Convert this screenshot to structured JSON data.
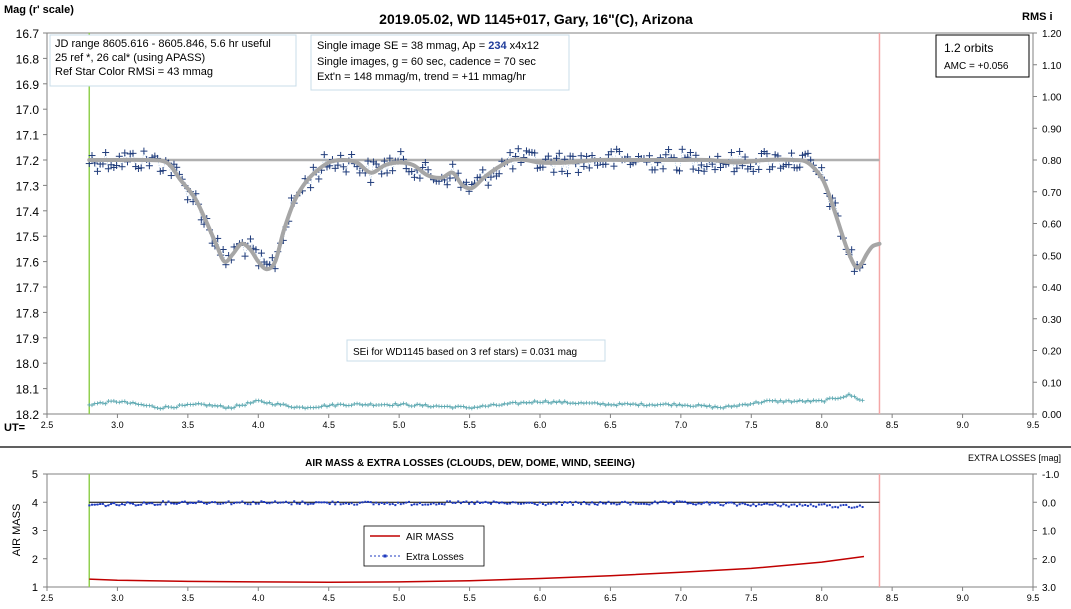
{
  "top_chart": {
    "title": "2019.05.02, WD 1145+017, Gary, 16\"(C), Arizona",
    "y_left_label": "Mag (r' scale)",
    "y_right_label": "RMS i",
    "x_label": "UT=",
    "info_box_1": [
      "JD range 8605.616 - 8605.846, 5.6 hr useful",
      "25 ref *, 26 cal* (using APASS)",
      "Ref Star Color RMSi = 43 mmag"
    ],
    "info_box_2": {
      "line1_pre": "Single image SE = 38 mmag, Ap = ",
      "line1_ap": "234",
      "line1_post": " x4x12",
      "line2": "Single images, g = 60 sec, cadence = 70 sec",
      "line3": "Ext'n = 148 mmag/m, trend = +11 mmag/hr"
    },
    "orbits_box": [
      "1.2 orbits",
      "AMC = +0.056"
    ],
    "sei_note": "SEi for WD1145 based on 3 ref stars) = 0.031 mag",
    "colors": {
      "data": "#1f3b7a",
      "model": "#a6a6a6",
      "rms": "#5aa7b0",
      "green_line": "#92d050",
      "red_line": "#f4a6a6"
    }
  },
  "bottom_chart": {
    "title": "AIR MASS & EXTRA LOSSES (CLOUDS, DEW, DOME, WIND, SEEING)",
    "y_left_label": "AIR MASS",
    "y_right_label": "EXTRA LOSSES [mag]",
    "legend": [
      "AIR MASS",
      "Extra Losses"
    ],
    "colors": {
      "airmass": "#c00000",
      "losses": "#1f3bbf"
    }
  },
  "chart_data": [
    {
      "type": "scatter",
      "title": "2019.05.02, WD 1145+017, Gary, 16\"(C), Arizona",
      "xlabel": "UT=",
      "ylabel": "Mag (r' scale)",
      "y2label": "RMS i",
      "xlim": [
        2.5,
        9.5
      ],
      "ylim": [
        18.2,
        16.7
      ],
      "y2lim": [
        0.0,
        1.2
      ],
      "x_ticks": [
        "2.5",
        "3.0",
        "3.5",
        "4.0",
        "4.5",
        "5.0",
        "5.5",
        "6.0",
        "6.5",
        "7.0",
        "7.5",
        "8.0",
        "8.5",
        "9.0",
        "9.5"
      ],
      "y_ticks": [
        "16.7",
        "16.8",
        "16.9",
        "17.0",
        "17.1",
        "17.2",
        "17.3",
        "17.4",
        "17.5",
        "17.6",
        "17.7",
        "17.8",
        "17.9",
        "18.0",
        "18.1",
        "18.2"
      ],
      "y2_ticks": [
        "1.20",
        "1.10",
        "1.00",
        "0.90",
        "0.80",
        "0.70",
        "0.60",
        "0.50",
        "0.40",
        "0.30",
        "0.20",
        "0.10",
        "0.00"
      ],
      "vertical_lines": [
        {
          "x": 2.8,
          "color": "green"
        },
        {
          "x": 8.41,
          "color": "red"
        }
      ],
      "reference_line": 17.2,
      "model_curve": {
        "x": [
          2.8,
          3.0,
          3.2,
          3.35,
          3.45,
          3.55,
          3.62,
          3.7,
          3.76,
          3.82,
          3.88,
          3.94,
          4.0,
          4.06,
          4.12,
          4.18,
          4.25,
          4.32,
          4.4,
          4.5,
          4.6,
          4.7,
          4.8,
          4.9,
          5.0,
          5.1,
          5.2,
          5.3,
          5.38,
          5.45,
          5.52,
          5.6,
          5.7,
          5.8,
          5.9,
          6.0,
          6.2,
          6.4,
          6.6,
          6.8,
          7.0,
          7.2,
          7.4,
          7.6,
          7.8,
          7.9,
          8.0,
          8.06,
          8.12,
          8.18,
          8.24,
          8.28,
          8.32,
          8.36,
          8.41
        ],
        "y": [
          17.2,
          17.2,
          17.2,
          17.21,
          17.28,
          17.35,
          17.43,
          17.53,
          17.6,
          17.57,
          17.53,
          17.55,
          17.6,
          17.63,
          17.6,
          17.48,
          17.37,
          17.3,
          17.25,
          17.21,
          17.2,
          17.21,
          17.25,
          17.22,
          17.21,
          17.22,
          17.26,
          17.27,
          17.25,
          17.3,
          17.31,
          17.27,
          17.23,
          17.2,
          17.2,
          17.21,
          17.21,
          17.2,
          17.2,
          17.2,
          17.2,
          17.2,
          17.21,
          17.2,
          17.2,
          17.21,
          17.27,
          17.35,
          17.45,
          17.55,
          17.62,
          17.61,
          17.57,
          17.54,
          17.53
        ]
      },
      "rms_approx": {
        "x": [
          2.8,
          3.0,
          3.3,
          3.6,
          3.8,
          4.0,
          4.3,
          4.6,
          5.0,
          5.5,
          6.0,
          6.5,
          7.0,
          7.3,
          7.6,
          8.0,
          8.2,
          8.3
        ],
        "y": [
          0.03,
          0.04,
          0.02,
          0.03,
          0.02,
          0.04,
          0.02,
          0.03,
          0.03,
          0.02,
          0.04,
          0.03,
          0.03,
          0.02,
          0.04,
          0.04,
          0.06,
          0.04
        ]
      }
    },
    {
      "type": "line",
      "title": "AIR MASS & EXTRA LOSSES (CLOUDS, DEW, DOME, WIND, SEEING)",
      "ylabel": "AIR MASS",
      "y2label": "EXTRA LOSSES [mag]",
      "xlim": [
        2.5,
        9.5
      ],
      "ylim": [
        1,
        5
      ],
      "y2lim": [
        3.0,
        -1.0
      ],
      "x_ticks": [
        "2.5",
        "3.0",
        "3.5",
        "4.0",
        "4.5",
        "5.0",
        "5.5",
        "6.0",
        "6.5",
        "7.0",
        "7.5",
        "8.0",
        "8.5",
        "9.0",
        "9.5"
      ],
      "y_ticks": [
        "5",
        "4",
        "3",
        "2",
        "1"
      ],
      "y2_ticks": [
        "-1.0",
        "0.0",
        "1.0",
        "2.0",
        "3.0"
      ],
      "vertical_lines": [
        {
          "x": 2.8,
          "color": "green"
        },
        {
          "x": 8.41,
          "color": "red"
        }
      ],
      "series": [
        {
          "name": "AIR MASS",
          "x": [
            2.8,
            3.0,
            3.5,
            4.0,
            4.5,
            5.0,
            5.5,
            6.0,
            6.5,
            7.0,
            7.5,
            8.0,
            8.3
          ],
          "values": [
            1.28,
            1.24,
            1.2,
            1.18,
            1.17,
            1.18,
            1.22,
            1.3,
            1.4,
            1.52,
            1.66,
            1.88,
            2.08
          ]
        },
        {
          "name": "Extra Losses",
          "x": [
            2.8,
            3.5,
            4.0,
            4.5,
            5.0,
            5.5,
            6.0,
            6.5,
            7.0,
            7.5,
            8.0,
            8.3
          ],
          "values": [
            0.1,
            0.0,
            0.02,
            0.02,
            0.05,
            0.02,
            0.05,
            0.04,
            0.03,
            0.08,
            0.12,
            0.15
          ]
        }
      ]
    }
  ]
}
